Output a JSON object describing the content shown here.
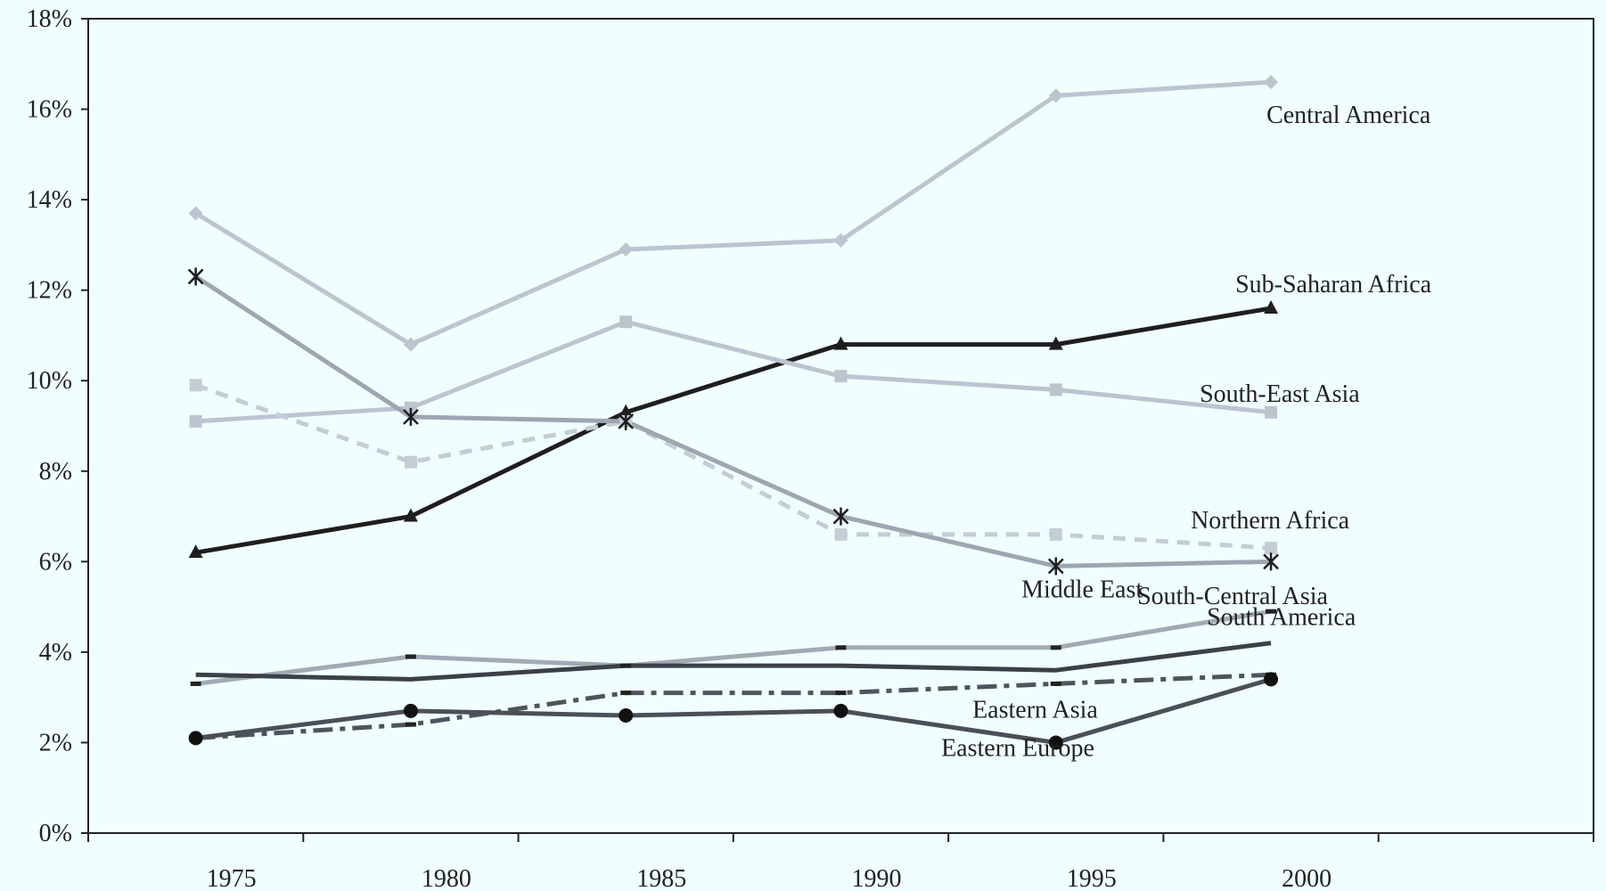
{
  "chart_data": {
    "type": "line",
    "title": "",
    "xlabel": "",
    "ylabel": "",
    "categories": [
      "1975",
      "1980",
      "1985",
      "1990",
      "1995",
      "2000"
    ],
    "y_tick_labels": [
      "0%",
      "2%",
      "4%",
      "6%",
      "8%",
      "10%",
      "12%",
      "14%",
      "16%",
      "18%"
    ],
    "ylim": [
      0,
      18
    ],
    "grid": false,
    "legend": "none",
    "series": [
      {
        "name": "Central America",
        "color": "#bcc4d0",
        "dash": "solid",
        "marker": "diamond",
        "values": [
          13.7,
          10.8,
          12.9,
          13.1,
          16.3,
          16.6
        ]
      },
      {
        "name": "Sub-Saharan Africa",
        "color": "#1e1e1e",
        "dash": "solid",
        "marker": "triangle",
        "values": [
          6.2,
          7.0,
          9.3,
          10.8,
          10.8,
          11.6
        ]
      },
      {
        "name": "South-East Asia",
        "color": "#bcc4d0",
        "dash": "solid",
        "marker": "square",
        "values": [
          9.1,
          9.4,
          11.3,
          10.1,
          9.8,
          9.3
        ]
      },
      {
        "name": "Northern Africa",
        "color": "#c4ccd6",
        "dash": "dashed",
        "marker": "square",
        "values": [
          9.9,
          8.2,
          9.1,
          6.6,
          6.6,
          6.3
        ]
      },
      {
        "name": "Middle East",
        "color": "#9ea6b2",
        "dash": "solid",
        "marker": "star",
        "values": [
          12.3,
          9.2,
          9.1,
          7.0,
          5.9,
          6.0
        ]
      },
      {
        "name": "South-Central Asia",
        "color": "#a2aab4",
        "dash": "solid",
        "marker": "dash",
        "values": [
          3.3,
          3.9,
          3.7,
          4.1,
          4.1,
          4.9
        ]
      },
      {
        "name": "South America",
        "color": "#3c4048",
        "dash": "solid",
        "marker": "none",
        "values": [
          3.5,
          3.4,
          3.7,
          3.7,
          3.6,
          4.2
        ]
      },
      {
        "name": "Eastern Asia",
        "color": "#4e545e",
        "dash": "dashdot",
        "marker": "dash",
        "values": [
          2.1,
          2.4,
          3.1,
          3.1,
          3.3,
          3.5
        ]
      },
      {
        "name": "Eastern Europe",
        "color": "#4a4f58",
        "dash": "solid",
        "marker": "circle",
        "values": [
          2.1,
          2.7,
          2.6,
          2.7,
          2.0,
          3.4
        ]
      }
    ]
  }
}
